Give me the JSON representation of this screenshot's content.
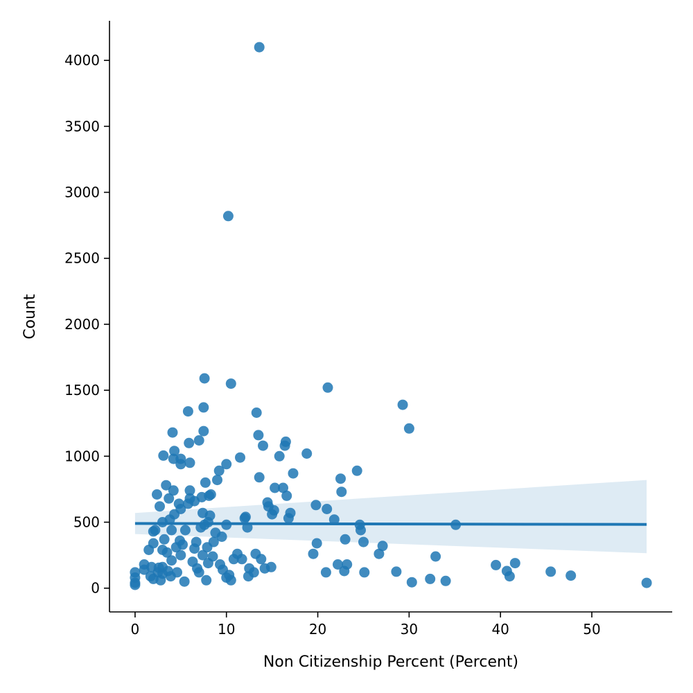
{
  "chart_data": {
    "type": "scatter",
    "title": "",
    "xlabel": "Non Citizenship Percent (Percent)",
    "ylabel": "Count",
    "xlim": [
      -2.8,
      58.8
    ],
    "ylim": [
      -180,
      4300
    ],
    "xticks": [
      0,
      10,
      20,
      30,
      40,
      50
    ],
    "yticks": [
      0,
      500,
      1000,
      1500,
      2000,
      2500,
      3000,
      3500,
      4000
    ],
    "grid": false,
    "legend": "none",
    "colors": {
      "points": "#1f77b4",
      "line": "#1f77b4",
      "band": "#1f77b4"
    },
    "points": [
      [
        0,
        120
      ],
      [
        0,
        80
      ],
      [
        0,
        40
      ],
      [
        0,
        25
      ],
      [
        1,
        180
      ],
      [
        1,
        140
      ],
      [
        1.5,
        290
      ],
      [
        1.7,
        90
      ],
      [
        1.8,
        160
      ],
      [
        2,
        430
      ],
      [
        2,
        340
      ],
      [
        2,
        70
      ],
      [
        2.2,
        440
      ],
      [
        2.4,
        710
      ],
      [
        2.5,
        120
      ],
      [
        2.6,
        155
      ],
      [
        2.7,
        620
      ],
      [
        2.8,
        60
      ],
      [
        3,
        500
      ],
      [
        3,
        290
      ],
      [
        3,
        160
      ],
      [
        3,
        110
      ],
      [
        3.1,
        1005
      ],
      [
        3.2,
        370
      ],
      [
        3.4,
        780
      ],
      [
        3.5,
        270
      ],
      [
        3.6,
        130
      ],
      [
        3.7,
        680
      ],
      [
        3.8,
        520
      ],
      [
        3.9,
        90
      ],
      [
        4,
        440
      ],
      [
        4,
        210
      ],
      [
        4.1,
        1180
      ],
      [
        4.2,
        980
      ],
      [
        4.2,
        740
      ],
      [
        4.3,
        1040
      ],
      [
        4.3,
        560
      ],
      [
        4.5,
        310
      ],
      [
        4.6,
        120
      ],
      [
        4.8,
        640
      ],
      [
        4.9,
        360
      ],
      [
        5,
        940
      ],
      [
        5,
        980
      ],
      [
        5,
        600
      ],
      [
        5,
        250
      ],
      [
        5.2,
        330
      ],
      [
        5.4,
        50
      ],
      [
        5.5,
        440
      ],
      [
        5.8,
        1340
      ],
      [
        5.8,
        640
      ],
      [
        5.9,
        1100
      ],
      [
        6,
        950
      ],
      [
        6,
        740
      ],
      [
        6,
        680
      ],
      [
        6.3,
        200
      ],
      [
        6.5,
        300
      ],
      [
        6.5,
        660
      ],
      [
        6.7,
        350
      ],
      [
        6.8,
        150
      ],
      [
        7,
        1120
      ],
      [
        7,
        120
      ],
      [
        7.2,
        460
      ],
      [
        7.3,
        690
      ],
      [
        7.4,
        570
      ],
      [
        7.4,
        250
      ],
      [
        7.5,
        1370
      ],
      [
        7.5,
        1190
      ],
      [
        7.6,
        1590
      ],
      [
        7.6,
        480
      ],
      [
        7.7,
        800
      ],
      [
        7.8,
        60
      ],
      [
        7.9,
        310
      ],
      [
        8,
        500
      ],
      [
        8,
        190
      ],
      [
        8.1,
        700
      ],
      [
        8.2,
        550
      ],
      [
        8.3,
        710
      ],
      [
        8.5,
        240
      ],
      [
        8.6,
        350
      ],
      [
        8.8,
        420
      ],
      [
        9,
        820
      ],
      [
        9.2,
        890
      ],
      [
        9.3,
        180
      ],
      [
        9.5,
        390
      ],
      [
        9.6,
        140
      ],
      [
        10,
        940
      ],
      [
        10,
        480
      ],
      [
        10,
        80
      ],
      [
        10.2,
        2820
      ],
      [
        10.3,
        100
      ],
      [
        10.5,
        60
      ],
      [
        10.5,
        1550
      ],
      [
        10.8,
        220
      ],
      [
        11.2,
        260
      ],
      [
        11.5,
        990
      ],
      [
        11.7,
        220
      ],
      [
        12,
        530
      ],
      [
        12.1,
        540
      ],
      [
        12.3,
        460
      ],
      [
        12.4,
        90
      ],
      [
        12.5,
        150
      ],
      [
        13,
        120
      ],
      [
        13.2,
        260
      ],
      [
        13.3,
        1330
      ],
      [
        13.5,
        1160
      ],
      [
        13.6,
        840
      ],
      [
        13.6,
        4100
      ],
      [
        13.8,
        220
      ],
      [
        14,
        1080
      ],
      [
        14.2,
        150
      ],
      [
        14.5,
        650
      ],
      [
        14.6,
        620
      ],
      [
        14.9,
        160
      ],
      [
        15,
        560
      ],
      [
        15.2,
        590
      ],
      [
        15.3,
        760
      ],
      [
        15.8,
        1000
      ],
      [
        16.2,
        760
      ],
      [
        16.4,
        1080
      ],
      [
        16.5,
        1110
      ],
      [
        16.6,
        700
      ],
      [
        16.8,
        530
      ],
      [
        17,
        570
      ],
      [
        17.3,
        870
      ],
      [
        18.8,
        1020
      ],
      [
        19.5,
        260
      ],
      [
        19.8,
        630
      ],
      [
        19.9,
        340
      ],
      [
        20.9,
        120
      ],
      [
        21,
        600
      ],
      [
        21.1,
        1520
      ],
      [
        21.8,
        520
      ],
      [
        22.2,
        180
      ],
      [
        22.5,
        830
      ],
      [
        22.6,
        730
      ],
      [
        22.9,
        130
      ],
      [
        23,
        370
      ],
      [
        23.2,
        180
      ],
      [
        24.3,
        890
      ],
      [
        24.6,
        480
      ],
      [
        24.7,
        440
      ],
      [
        25.0,
        350
      ],
      [
        25.1,
        120
      ],
      [
        26.7,
        260
      ],
      [
        27.1,
        320
      ],
      [
        28.6,
        125
      ],
      [
        29.3,
        1390
      ],
      [
        30.0,
        1210
      ],
      [
        30.3,
        45
      ],
      [
        32.3,
        70
      ],
      [
        32.9,
        240
      ],
      [
        34.0,
        55
      ],
      [
        35.1,
        480
      ],
      [
        39.5,
        175
      ],
      [
        40.7,
        130
      ],
      [
        41.0,
        90
      ],
      [
        41.6,
        190
      ],
      [
        45.5,
        125
      ],
      [
        47.7,
        95
      ],
      [
        56.0,
        40
      ]
    ],
    "regression": {
      "x": [
        0,
        56.0
      ],
      "y": [
        490,
        483
      ]
    },
    "confidence_band": {
      "x": [
        0,
        56.0
      ],
      "upper": [
        570,
        820
      ],
      "lower": [
        410,
        265
      ]
    }
  }
}
